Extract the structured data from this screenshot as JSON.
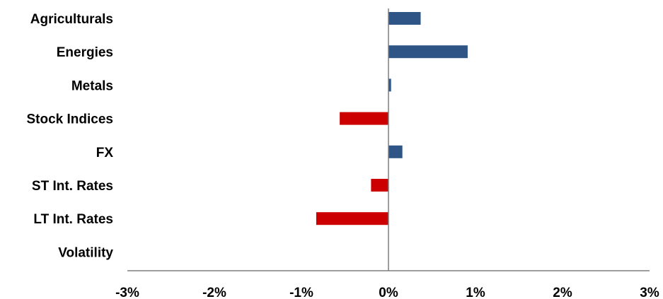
{
  "chart_data": {
    "type": "bar",
    "orientation": "horizontal",
    "title": "",
    "xlabel": "",
    "ylabel": "",
    "categories": [
      "Agriculturals",
      "Energies",
      "Metals",
      "Stock Indices",
      "FX",
      "ST Int. Rates",
      "LT Int. Rates",
      "Volatility"
    ],
    "values": [
      0.37,
      0.91,
      0.03,
      -0.56,
      0.16,
      -0.2,
      -0.83,
      0.0
    ],
    "value_unit": "%",
    "xlim": [
      -3,
      3
    ],
    "x_ticks": [
      -3,
      -2,
      -1,
      0,
      1,
      2,
      3
    ],
    "x_tick_labels": [
      "-3%",
      "-2%",
      "-1%",
      "0%",
      "1%",
      "2%",
      "3%"
    ],
    "grid": false,
    "legend": "none",
    "colors": {
      "positive": "#2E5586",
      "negative": "#CC0000",
      "axis": "#7F7F7F"
    }
  }
}
